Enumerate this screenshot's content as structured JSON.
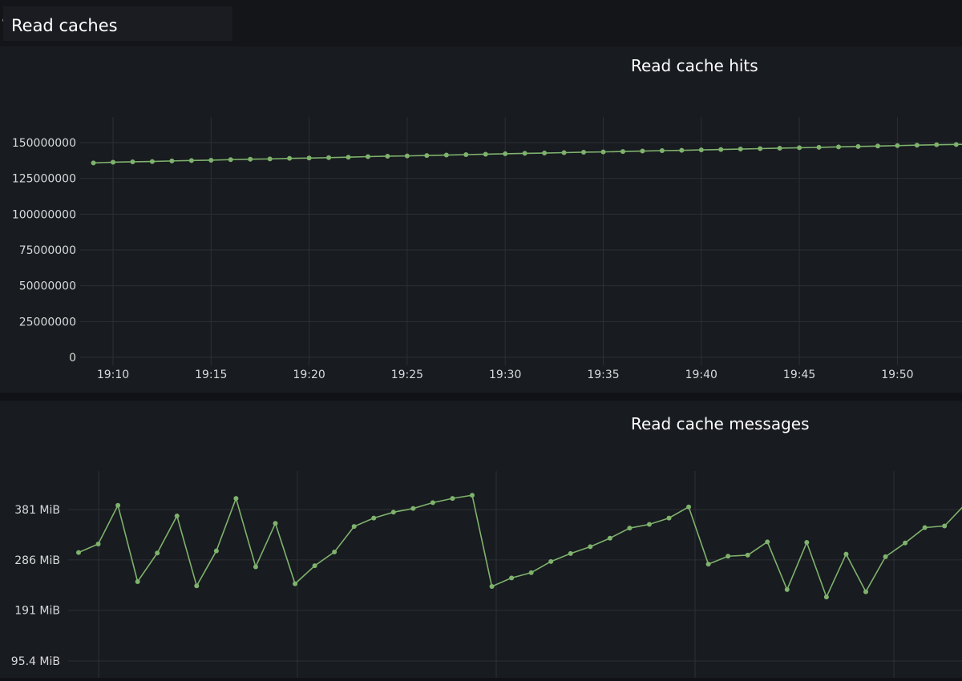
{
  "row": {
    "title": "Read caches"
  },
  "panels": {
    "hits": {
      "title": "Read cache hits"
    },
    "messages": {
      "title": "Read cache messages"
    }
  },
  "colors": {
    "series": "#7eb26d",
    "grid": "#2c2f35",
    "background": "#181b1f",
    "text": "#d8d9da"
  },
  "chart_data": [
    {
      "type": "line",
      "title": "Read cache hits",
      "x_tick_labels": [
        "19:10",
        "19:15",
        "19:20",
        "19:25",
        "19:30",
        "19:35",
        "19:40",
        "19:45",
        "19:50"
      ],
      "y_tick_labels": [
        "0",
        "25000000",
        "50000000",
        "75000000",
        "100000000",
        "125000000",
        "150000000"
      ],
      "ylim": [
        0,
        150000000
      ],
      "grid": true,
      "series": [
        {
          "x": [
            "19:09",
            "19:10",
            "19:11",
            "19:12",
            "19:13",
            "19:14",
            "19:15",
            "19:16",
            "19:17",
            "19:18",
            "19:19",
            "19:20",
            "19:21",
            "19:22",
            "19:23",
            "19:24",
            "19:25",
            "19:26",
            "19:27",
            "19:28",
            "19:29",
            "19:30",
            "19:31",
            "19:32",
            "19:33",
            "19:34",
            "19:35",
            "19:36",
            "19:37",
            "19:38",
            "19:39",
            "19:40",
            "19:41",
            "19:42",
            "19:43",
            "19:44",
            "19:45",
            "19:46",
            "19:47",
            "19:48",
            "19:49",
            "19:50",
            "19:51",
            "19:52",
            "19:53",
            "19:54"
          ],
          "values": [
            135800000,
            136300000,
            136600000,
            136800000,
            137200000,
            137500000,
            137700000,
            138100000,
            138400000,
            138600000,
            139000000,
            139200000,
            139500000,
            139800000,
            140200000,
            140500000,
            140700000,
            141000000,
            141300000,
            141600000,
            141900000,
            142200000,
            142500000,
            142700000,
            143000000,
            143300000,
            143500000,
            143800000,
            144100000,
            144400000,
            144600000,
            144900000,
            145200000,
            145500000,
            145800000,
            146100000,
            146400000,
            146700000,
            147000000,
            147300000,
            147600000,
            147900000,
            148200000,
            148500000,
            148700000,
            149000000
          ]
        }
      ]
    },
    {
      "type": "line",
      "title": "Read cache messages",
      "y_tick_labels": [
        "95.4 MiB",
        "191 MiB",
        "286 MiB",
        "381 MiB"
      ],
      "y_ticks_mib": [
        95.4,
        191,
        286,
        381
      ],
      "ylim_mib": [
        50,
        440
      ],
      "grid": true,
      "series": [
        {
          "unit": "MiB",
          "x_time": [
            "19:09",
            "19:10",
            "19:11",
            "19:12",
            "19:13",
            "19:14",
            "19:15",
            "19:16",
            "19:17",
            "19:18",
            "19:19",
            "19:20",
            "19:21",
            "19:22",
            "19:23",
            "19:24",
            "19:25",
            "19:26",
            "19:27",
            "19:28",
            "19:29",
            "19:30",
            "19:31",
            "19:32",
            "19:33",
            "19:34",
            "19:35",
            "19:36",
            "19:37",
            "19:38",
            "19:39",
            "19:40",
            "19:41",
            "19:42",
            "19:43",
            "19:44",
            "19:45",
            "19:46",
            "19:47",
            "19:48",
            "19:49",
            "19:50",
            "19:51",
            "19:52",
            "19:53",
            "19:54"
          ],
          "values": [
            300,
            316,
            389,
            245,
            299,
            369,
            237,
            303,
            402,
            273,
            355,
            241,
            275,
            301,
            349,
            365,
            376,
            383,
            394,
            402,
            408,
            236,
            252,
            262,
            283,
            298,
            311,
            327,
            346,
            353,
            365,
            386,
            278,
            293,
            295,
            320,
            230,
            319,
            216,
            297,
            226,
            292,
            318,
            347,
            350,
            389
          ]
        }
      ]
    }
  ]
}
